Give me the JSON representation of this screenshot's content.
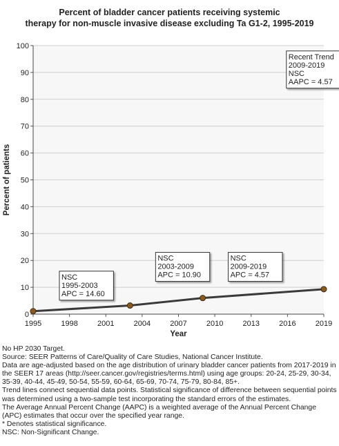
{
  "chart_data": {
    "type": "line",
    "title_lines": [
      "Percent of bladder cancer patients receiving systemic",
      "therapy for non-muscle invasive disease excluding Ta G1-2, 1995-2019"
    ],
    "xlabel": "Year",
    "ylabel": "Percent of patients",
    "xlim": [
      1995,
      2019
    ],
    "ylim": [
      0,
      100
    ],
    "x_ticks": [
      1995,
      1998,
      2001,
      2004,
      2007,
      2010,
      2013,
      2016,
      2019
    ],
    "y_ticks": [
      0,
      10,
      20,
      30,
      40,
      50,
      60,
      70,
      80,
      90,
      100
    ],
    "grid": true,
    "series": [
      {
        "x": [
          1995,
          2003,
          2009,
          2019
        ],
        "y": [
          1.1,
          3.2,
          6.0,
          9.3
        ]
      }
    ],
    "annotations": [
      {
        "lines": [
          "NSC",
          "1995-2003",
          "APC = 14.60"
        ],
        "anchor_year": 1995,
        "anchor_value": 16
      },
      {
        "lines": [
          "NSC",
          "2003-2009",
          "APC = 10.90"
        ],
        "anchor_year": 2003,
        "anchor_value": 23
      },
      {
        "lines": [
          "NSC",
          "2009-2019",
          "APC =  4.57"
        ],
        "anchor_year": 2009,
        "anchor_value": 23
      },
      {
        "lines": [
          "Recent Trend",
          "2009-2019",
          "NSC",
          "AAPC =  4.57"
        ],
        "anchor_year": 2013.8,
        "anchor_value": 98
      }
    ],
    "colors": {
      "line": "#3a3a3a",
      "marker": "#8b5a1e",
      "grid": "#cfcfcf",
      "plot_bg": "#f7f7f7"
    }
  },
  "footnotes": [
    "No HP 2030 Target.",
    "Source: SEER Patterns of Care/Quality of Care Studies, National Cancer Institute.",
    "Data are age-adjusted based on the age distribution of urinary bladder cancer patients from 2017-2019 in the SEER 17 areas (http://seer.cancer.gov/registries/terms.html) using age groups: 20-24, 25-29, 30-34, 35-39, 40-44, 45-49, 50-54, 55-59, 60-64, 65-69, 70-74, 75-79, 80-84, 85+.",
    "Trend lines connect sequential data points. Statistical significance of difference between sequential points was determined using a two-sample test incorporating the standard errors of the estimates.",
    "The Average Annual Percent Change (AAPC) is a weighted average of the Annual Percent Change (APC) estimates that occur over the specified year range.",
    "* Denotes statistical significance.",
    "NSC: Non-Significant Change."
  ]
}
